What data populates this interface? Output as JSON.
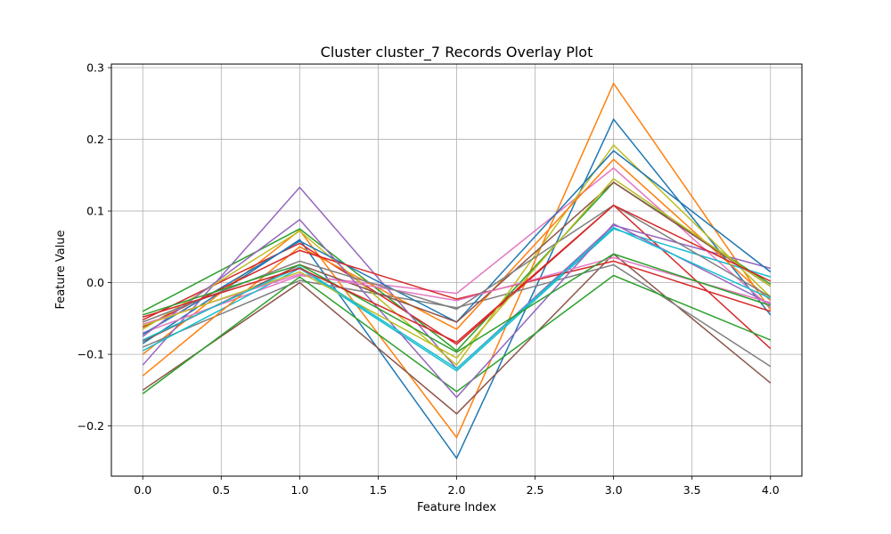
{
  "chart_data": {
    "type": "line",
    "title": "Cluster cluster_7 Records Overlay Plot",
    "xlabel": "Feature Index",
    "ylabel": "Feature Value",
    "x": [
      0,
      1,
      2,
      3,
      4
    ],
    "xlim": [
      -0.2,
      4.2
    ],
    "ylim": [
      -0.27,
      0.305
    ],
    "xticks": [
      0.0,
      0.5,
      1.0,
      1.5,
      2.0,
      2.5,
      3.0,
      3.5,
      4.0
    ],
    "xtick_labels": [
      "0.0",
      "0.5",
      "1.0",
      "1.5",
      "2.0",
      "2.5",
      "3.0",
      "3.5",
      "4.0"
    ],
    "yticks": [
      -0.2,
      -0.1,
      0.0,
      0.1,
      0.2,
      0.3
    ],
    "ytick_labels": [
      "−0.2",
      "−0.1",
      "0.0",
      "0.1",
      "0.2",
      "0.3"
    ],
    "grid": true,
    "series": [
      {
        "color": "#1f77b4",
        "values": [
          -0.085,
          0.06,
          -0.245,
          0.228,
          -0.045
        ]
      },
      {
        "color": "#ff7f0e",
        "values": [
          -0.1,
          0.073,
          -0.216,
          0.278,
          -0.038
        ]
      },
      {
        "color": "#2ca02c",
        "values": [
          -0.04,
          0.075,
          -0.095,
          0.14,
          -0.002
        ]
      },
      {
        "color": "#d62728",
        "values": [
          -0.052,
          0.055,
          -0.086,
          0.108,
          -0.092
        ]
      },
      {
        "color": "#9467bd",
        "values": [
          -0.115,
          0.133,
          -0.12,
          0.08,
          0.02
        ]
      },
      {
        "color": "#8c564b",
        "values": [
          -0.15,
          0.0,
          -0.183,
          0.04,
          -0.14
        ]
      },
      {
        "color": "#e377c2",
        "values": [
          -0.07,
          0.01,
          -0.015,
          0.16,
          -0.035
        ]
      },
      {
        "color": "#7f7f7f",
        "values": [
          -0.09,
          0.003,
          -0.035,
          0.025,
          -0.117
        ]
      },
      {
        "color": "#bcbd22",
        "values": [
          -0.065,
          0.072,
          -0.115,
          0.192,
          -0.02
        ]
      },
      {
        "color": "#17becf",
        "values": [
          -0.095,
          0.02,
          -0.123,
          0.075,
          0.008
        ]
      },
      {
        "color": "#1f77b4",
        "values": [
          -0.072,
          0.058,
          -0.055,
          0.184,
          0.015
        ]
      },
      {
        "color": "#ff7f0e",
        "values": [
          -0.13,
          0.05,
          -0.065,
          0.172,
          -0.025
        ]
      },
      {
        "color": "#2ca02c",
        "values": [
          -0.155,
          0.008,
          -0.152,
          0.01,
          -0.08
        ]
      },
      {
        "color": "#d62728",
        "values": [
          -0.062,
          0.045,
          -0.023,
          0.03,
          -0.04
        ]
      },
      {
        "color": "#9467bd",
        "values": [
          -0.075,
          0.088,
          -0.16,
          0.082,
          -0.03
        ]
      },
      {
        "color": "#8c564b",
        "values": [
          -0.082,
          0.025,
          -0.055,
          0.14,
          -0.005
        ]
      },
      {
        "color": "#e377c2",
        "values": [
          -0.058,
          0.012,
          -0.025,
          0.035,
          -0.028
        ]
      },
      {
        "color": "#7f7f7f",
        "values": [
          -0.055,
          0.03,
          -0.037,
          0.108,
          -0.02
        ]
      },
      {
        "color": "#bcbd22",
        "values": [
          -0.06,
          0.015,
          -0.105,
          0.145,
          -0.005
        ]
      },
      {
        "color": "#17becf",
        "values": [
          -0.08,
          0.022,
          -0.12,
          0.077,
          -0.022
        ]
      },
      {
        "color": "#2ca02c",
        "values": [
          -0.045,
          0.025,
          -0.097,
          0.04,
          -0.032
        ]
      },
      {
        "color": "#d62728",
        "values": [
          -0.048,
          0.02,
          -0.083,
          0.108,
          0.002
        ]
      }
    ]
  }
}
